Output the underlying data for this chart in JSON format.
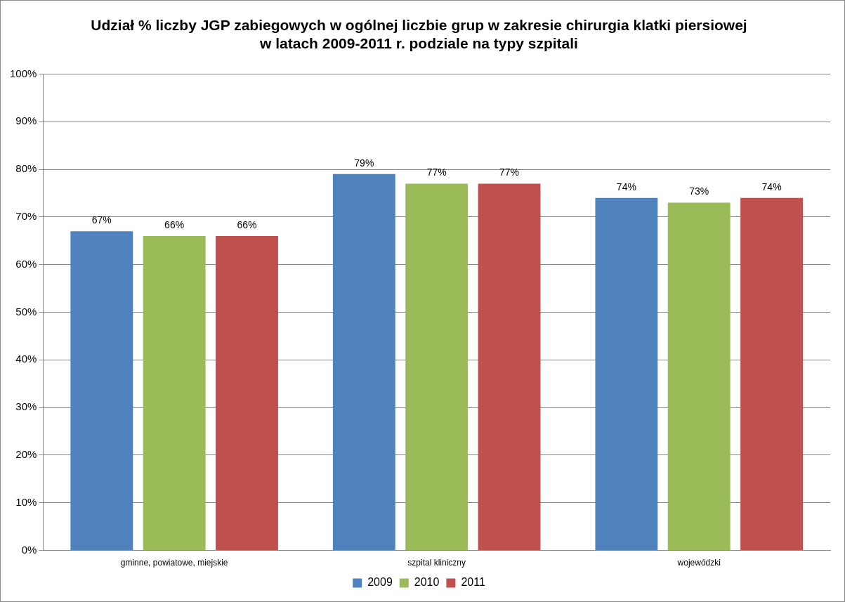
{
  "chart_data": {
    "type": "bar",
    "title": "Udział % liczby JGP zabiegowych w ogólnej liczbie grup w zakresie chirurgia klatki piersiowej w latach 2009-2011 r. podziale na typy szpitali",
    "categories": [
      "gminne, powiatowe, miejskie",
      "szpital kliniczny",
      "wojewódzki"
    ],
    "series": [
      {
        "name": "2009",
        "color": "#4f81bd",
        "values": [
          67,
          79,
          74
        ],
        "value_labels": [
          "67%",
          "79%",
          "74%"
        ]
      },
      {
        "name": "2010",
        "color": "#9bbb59",
        "values": [
          66,
          77,
          73
        ],
        "value_labels": [
          "66%",
          "77%",
          "73%"
        ]
      },
      {
        "name": "2011",
        "color": "#c0504d",
        "values": [
          66,
          77,
          74
        ],
        "value_labels": [
          "66%",
          "77%",
          "74%"
        ]
      }
    ],
    "ylim": [
      0,
      100
    ],
    "yticks": [
      {
        "value": 0,
        "label": "0%"
      },
      {
        "value": 10,
        "label": "10%"
      },
      {
        "value": 20,
        "label": "20%"
      },
      {
        "value": 30,
        "label": "30%"
      },
      {
        "value": 40,
        "label": "40%"
      },
      {
        "value": 50,
        "label": "50%"
      },
      {
        "value": 60,
        "label": "60%"
      },
      {
        "value": 70,
        "label": "70%"
      },
      {
        "value": 80,
        "label": "80%"
      },
      {
        "value": 90,
        "label": "90%"
      },
      {
        "value": 100,
        "label": "100%"
      }
    ],
    "grid": "y",
    "legend": "bottom"
  }
}
